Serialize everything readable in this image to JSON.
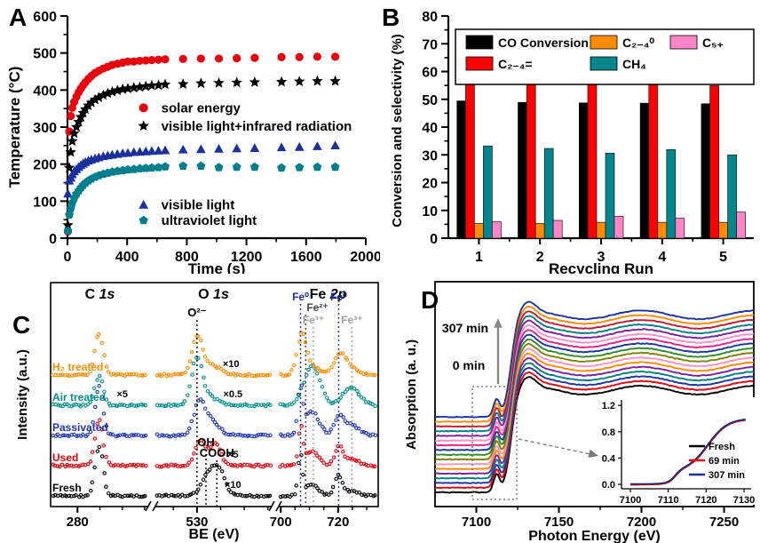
{
  "panels": [
    {
      "letter": "A"
    },
    {
      "letter": "B"
    },
    {
      "letter": "C"
    },
    {
      "letter": "D"
    }
  ],
  "chart_data": [
    {
      "panel": "A",
      "type": "scatter",
      "xlabel": "Time (s)",
      "ylabel": "Temperature (°C)",
      "xlim": [
        0,
        2000
      ],
      "ylim": [
        0,
        600
      ],
      "xticks": [
        0,
        400,
        800,
        1200,
        1600,
        2000
      ],
      "yticks": [
        0,
        100,
        200,
        300,
        400,
        500,
        600
      ],
      "x": [
        3,
        12,
        22,
        32,
        45,
        60,
        75,
        90,
        105,
        120,
        140,
        160,
        185,
        210,
        240,
        270,
        300,
        335,
        370,
        405,
        445,
        485,
        525,
        565,
        610,
        655,
        775,
        895,
        1015,
        1135,
        1255,
        1435,
        1555,
        1675,
        1795
      ],
      "series": [
        {
          "name": "solar energy",
          "marker": "circle",
          "color": "#e8000d",
          "legend_t": 510,
          "legend_T": 352,
          "values": [
            18,
            288,
            330,
            352,
            368,
            382,
            394,
            404,
            413,
            421,
            430,
            438,
            446,
            452,
            458,
            463,
            468,
            471,
            474,
            477,
            477,
            479,
            480,
            481,
            482,
            483,
            484,
            485,
            485,
            486,
            487,
            489,
            489,
            490,
            490
          ]
        },
        {
          "name": "visible light+infrared radiation",
          "marker": "star",
          "color": "#000000",
          "legend_t": 510,
          "legend_T": 303,
          "values": [
            35,
            190,
            232,
            262,
            283,
            300,
            314,
            327,
            338,
            348,
            358,
            366,
            374,
            380,
            386,
            391,
            395,
            399,
            402,
            404,
            406,
            408,
            410,
            412,
            413,
            415,
            416,
            418,
            419,
            420,
            421,
            422,
            423,
            424,
            424
          ]
        },
        {
          "name": "visible light",
          "marker": "triangle",
          "color": "#1c2f9e",
          "legend_t": 510,
          "legend_T": 90,
          "values": [
            120,
            155,
            163,
            172,
            180,
            186,
            192,
            197,
            201,
            205,
            209,
            212,
            215,
            218,
            221,
            223,
            225,
            227,
            229,
            230,
            232,
            233,
            234,
            235,
            236,
            237,
            239,
            240,
            241,
            242,
            243,
            245,
            246,
            248,
            250
          ]
        },
        {
          "name": "ultraviolet light",
          "marker": "pentagon",
          "color": "#00808c",
          "legend_t": 510,
          "legend_T": 48,
          "values": [
            20,
            63,
            80,
            95,
            108,
            119,
            128,
            136,
            143,
            149,
            155,
            160,
            165,
            169,
            173,
            176,
            179,
            181,
            183,
            185,
            186,
            188,
            189,
            190,
            191,
            193,
            195,
            195,
            191,
            192,
            192,
            190,
            191,
            192,
            192
          ]
        }
      ]
    },
    {
      "panel": "B",
      "type": "bar",
      "xlabel": "Recycling Run",
      "ylabel": "Conversion and selectivity (%)",
      "categories": [
        "1",
        "2",
        "3",
        "4",
        "5"
      ],
      "ylim": [
        0,
        80
      ],
      "yticks": [
        0,
        10,
        20,
        30,
        40,
        50,
        60,
        70,
        80
      ],
      "series": [
        {
          "name": "CO Conversion",
          "color": "#000000",
          "values": [
            49.5,
            49.0,
            48.8,
            48.7,
            48.5
          ]
        },
        {
          "name": "C₂₋₄=",
          "color": "#ff0000",
          "values": [
            55.8,
            56.3,
            55.9,
            55.6,
            54.9
          ]
        },
        {
          "name": "C₂₋₄⁰",
          "color": "#ff8c00",
          "values": [
            5.3,
            5.3,
            5.7,
            5.7,
            5.7
          ]
        },
        {
          "name": "CH₄",
          "color": "#00868b",
          "values": [
            33.2,
            32.3,
            30.6,
            31.9,
            30.0
          ]
        },
        {
          "name": "C₅₊",
          "color": "#ff85c8",
          "values": [
            5.9,
            6.4,
            7.9,
            7.2,
            9.4
          ]
        }
      ]
    },
    {
      "panel": "C",
      "type": "xps",
      "xlabel": "BE (eV)",
      "ylabel": "Intensity (a.u.)",
      "segments": [
        {
          "title": "C 1s",
          "range": [
            274,
            296
          ],
          "major_ticks": [
            280
          ],
          "minor_ticks": [
            285,
            290,
            295
          ]
        },
        {
          "title": "O 1s",
          "range": [
            521,
            546
          ],
          "major_ticks": [
            530
          ],
          "minor_ticks": [
            525,
            535,
            540,
            545
          ]
        },
        {
          "title": "Fe 2p",
          "range": [
            699,
            734
          ],
          "major_ticks": [
            700,
            720
          ],
          "minor_ticks": [
            705,
            710,
            715,
            725,
            730
          ]
        }
      ],
      "traces": [
        {
          "name": "Fresh",
          "color": "#000000",
          "peaks": [
            [
              [
                284.8,
                0.9,
                1.0
              ]
            ],
            [
              [
                532.3,
                1.4,
                0.38
              ],
              [
                534.6,
                1.3,
                0.5
              ]
            ],
            [
              [
                706.9,
                0.8,
                0.8
              ],
              [
                710.9,
                2.4,
                0.22
              ],
              [
                720.2,
                1.3,
                0.42
              ],
              [
                724.8,
                2.4,
                0.1
              ]
            ]
          ],
          "notes": [
            {
              "seg": 1,
              "x": 537.6,
              "text": "×10"
            }
          ]
        },
        {
          "name": "Used",
          "color": "#e8000d",
          "peaks": [
            [
              [
                284.8,
                0.9,
                0.95
              ]
            ],
            [
              [
                530.7,
                1.1,
                0.5
              ],
              [
                533.8,
                1.2,
                0.45
              ]
            ],
            [
              [
                706.9,
                0.8,
                0.75
              ],
              [
                710.9,
                2.4,
                0.3
              ],
              [
                720.2,
                1.4,
                0.38
              ],
              [
                724.8,
                2.4,
                0.14
              ]
            ]
          ],
          "notes": [
            {
              "seg": 1,
              "x": 537.6,
              "text": "×5"
            }
          ]
        },
        {
          "name": "Passivated",
          "color": "#2134b5",
          "peaks": [
            [
              [
                284.8,
                0.9,
                1.0
              ]
            ],
            [
              [
                530.5,
                1.2,
                0.6
              ],
              [
                532.8,
                1.8,
                0.28
              ]
            ],
            [
              [
                706.9,
                0.8,
                0.85
              ],
              [
                710.6,
                2.6,
                0.5
              ],
              [
                720.3,
                1.6,
                0.35
              ],
              [
                724.5,
                2.6,
                0.22
              ]
            ]
          ],
          "notes": []
        },
        {
          "name": "Air treated",
          "color": "#00918b",
          "peaks": [
            [
              [
                284.8,
                0.9,
                0.6
              ]
            ],
            [
              [
                530.0,
                1.2,
                0.95
              ],
              [
                533.0,
                1.5,
                0.15
              ]
            ],
            [
              [
                710.9,
                2.8,
                0.8
              ],
              [
                724.6,
                2.8,
                0.38
              ]
            ]
          ],
          "notes": [
            {
              "seg": 0,
              "x": 290,
              "text": "×5"
            },
            {
              "seg": 1,
              "x": 537.6,
              "text": "×0.5"
            }
          ]
        },
        {
          "name": "H₂ treated",
          "color": "#ff8c00",
          "peaks": [
            [
              [
                284.8,
                0.9,
                0.85
              ]
            ],
            [
              [
                530.1,
                1.2,
                0.8
              ],
              [
                533.6,
                1.6,
                0.18
              ]
            ],
            [
              [
                707.4,
                1.6,
                0.8
              ],
              [
                710.8,
                2.4,
                0.18
              ],
              [
                720.6,
                2.2,
                0.42
              ],
              [
                725.0,
                2.6,
                0.12
              ]
            ]
          ],
          "notes": [
            {
              "seg": 1,
              "x": 537.2,
              "text": "×10"
            }
          ]
        }
      ],
      "annotations": [
        {
          "seg": 1,
          "x": 530.0,
          "y1": 52,
          "ly": 48,
          "color": "#000000",
          "label": "O²⁻",
          "fs": 13
        },
        {
          "seg": 1,
          "x": 531.9,
          "y1": 198,
          "ly": 194,
          "color": "#000000",
          "label": "OH",
          "fs": 13
        },
        {
          "seg": 1,
          "x": 534.2,
          "y1": 210,
          "ly": 206,
          "color": "#000000",
          "label": "COOH",
          "fs": 13
        },
        {
          "seg": 2,
          "x": 706.9,
          "y1": 34,
          "ly": 30,
          "color": "#1b2fa0",
          "label": "Fe⁰",
          "fs": 12
        },
        {
          "seg": 2,
          "x": 708.7,
          "y1": 46,
          "ly": 42,
          "color": "#444444",
          "label": "Fe²⁺",
          "fs": 12,
          "anchor": "start"
        },
        {
          "seg": 2,
          "x": 711.4,
          "y1": 60,
          "ly": 56,
          "color": "#a0a0a0",
          "label": "Fe³⁺",
          "fs": 12
        },
        {
          "seg": 2,
          "x": 720.2,
          "y1": 34,
          "ly": 30,
          "color": "#1b2fa0",
          "label": "Fe⁰",
          "fs": 12
        },
        {
          "seg": 2,
          "x": 724.8,
          "y1": 60,
          "ly": 56,
          "color": "#a0a0a0",
          "label": "Fe³⁺",
          "fs": 12
        }
      ]
    },
    {
      "panel": "D",
      "type": "xanes",
      "xlabel": "Photon Energy (eV)",
      "ylabel": "Absorption (a. u.)",
      "xlim": [
        7075,
        7268
      ],
      "xticks": [
        7100,
        7150,
        7200,
        7250
      ],
      "minor_xticks": [
        7125,
        7175,
        7225
      ],
      "n_curves": 17,
      "curve_colors": [
        "#000000",
        "#e8000d",
        "#1c33a0",
        "#008080",
        "#7b1fa2",
        "#ff8c00",
        "#ff8fc7",
        "#808000",
        "#2e8b2e",
        "#1c33a0",
        "#e0218a",
        "#ff8fc7",
        "#7b1fa2",
        "#008080",
        "#c21830",
        "#ff8c00",
        "#1c33a0"
      ],
      "arrow_labels": {
        "top": "307 min",
        "bottom": "0 min"
      },
      "inset": {
        "xticks": [
          7100,
          7110,
          7120,
          7130
        ],
        "ytick_labels": [
          "0.0",
          "0.4",
          "0.8",
          "1.2"
        ],
        "ytick_values": [
          0,
          0.4,
          0.8,
          1.2
        ],
        "legend": [
          {
            "name": "Fresh",
            "color": "#000000"
          },
          {
            "name": "69 min",
            "color": "#e8000d"
          },
          {
            "name": "307 min",
            "color": "#1c2f9e"
          }
        ]
      }
    }
  ]
}
